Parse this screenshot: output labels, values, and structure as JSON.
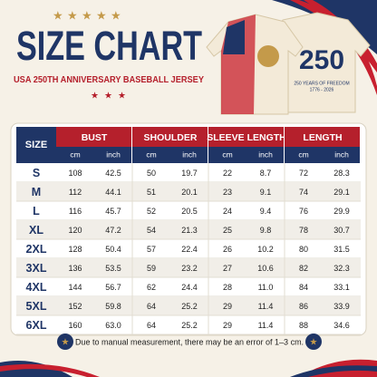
{
  "header": {
    "title": "SIZE CHART",
    "subtitle": "USA 250TH ANNIVERSARY BASEBALL JERSEY"
  },
  "jersey": {
    "number": "250",
    "tagline": "250 YEARS OF FREEDOM",
    "years": "1776 - 2026"
  },
  "table": {
    "size_header": "SIZE",
    "columns": [
      "BUST",
      "SHOULDER",
      "SLEEVE LENGTH",
      "LENGTH"
    ],
    "subheaders": [
      "cm",
      "inch",
      "cm",
      "inch",
      "cm",
      "inch",
      "cm",
      "inch"
    ],
    "rows": [
      [
        "S",
        "108",
        "42.5",
        "50",
        "19.7",
        "22",
        "8.7",
        "72",
        "28.3"
      ],
      [
        "M",
        "112",
        "44.1",
        "51",
        "20.1",
        "23",
        "9.1",
        "74",
        "29.1"
      ],
      [
        "L",
        "116",
        "45.7",
        "52",
        "20.5",
        "24",
        "9.4",
        "76",
        "29.9"
      ],
      [
        "XL",
        "120",
        "47.2",
        "54",
        "21.3",
        "25",
        "9.8",
        "78",
        "30.7"
      ],
      [
        "2XL",
        "128",
        "50.4",
        "57",
        "22.4",
        "26",
        "10.2",
        "80",
        "31.5"
      ],
      [
        "3XL",
        "136",
        "53.5",
        "59",
        "23.2",
        "27",
        "10.6",
        "82",
        "32.3"
      ],
      [
        "4XL",
        "144",
        "56.7",
        "62",
        "24.4",
        "28",
        "11.0",
        "84",
        "33.1"
      ],
      [
        "5XL",
        "152",
        "59.8",
        "64",
        "25.2",
        "29",
        "11.4",
        "86",
        "33.9"
      ],
      [
        "6XL",
        "160",
        "63.0",
        "64",
        "25.2",
        "29",
        "11.4",
        "88",
        "34.6"
      ]
    ]
  },
  "footer": {
    "note": "Due to manual measurement, there may be an error of 1–3 cm."
  }
}
